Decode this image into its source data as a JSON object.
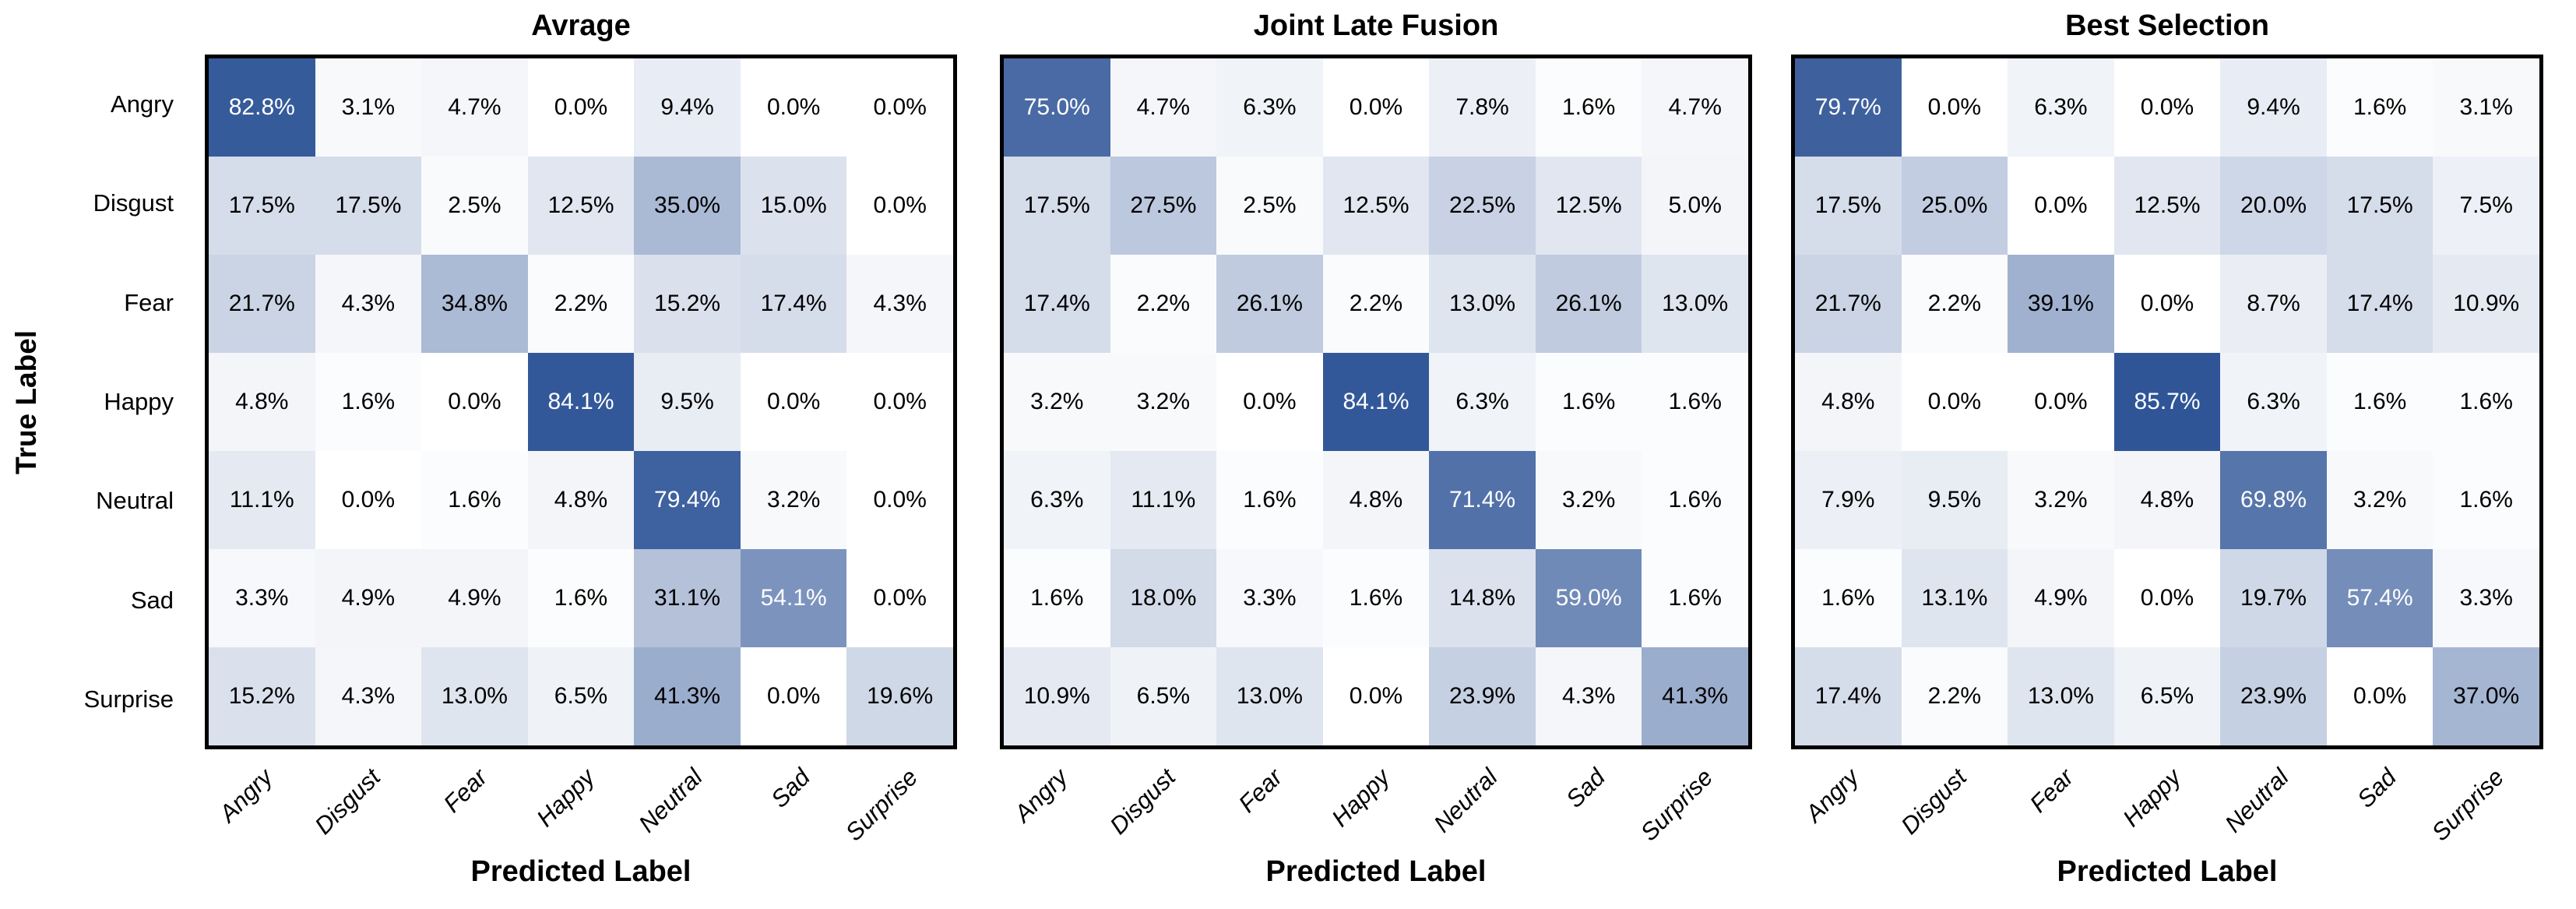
{
  "figure": {
    "y_axis_label": "True Label",
    "x_axis_label": "Predicted Label",
    "classes": [
      "Angry",
      "Disgust",
      "Fear",
      "Happy",
      "Neutral",
      "Sad",
      "Surprise"
    ],
    "colors": {
      "cmap_min": "#FFFFFF",
      "cmap_max": "#2F5597",
      "border": "#000000",
      "text_dark": "#000000",
      "text_light": "#FFFFFF"
    },
    "scale_max_percent": 85.7,
    "white_text_threshold_percent": 50
  },
  "chart_data": [
    {
      "type": "heatmap",
      "title": "Avrage",
      "xlabel": "Predicted Label",
      "ylabel": "True Label",
      "row_labels": [
        "Angry",
        "Disgust",
        "Fear",
        "Happy",
        "Neutral",
        "Sad",
        "Surprise"
      ],
      "col_labels": [
        "Angry",
        "Disgust",
        "Fear",
        "Happy",
        "Neutral",
        "Sad",
        "Surprise"
      ],
      "values_percent": [
        [
          82.8,
          3.1,
          4.7,
          0.0,
          9.4,
          0.0,
          0.0
        ],
        [
          17.5,
          17.5,
          2.5,
          12.5,
          35.0,
          15.0,
          0.0
        ],
        [
          21.7,
          4.3,
          34.8,
          2.2,
          15.2,
          17.4,
          4.3
        ],
        [
          4.8,
          1.6,
          0.0,
          84.1,
          9.5,
          0.0,
          0.0
        ],
        [
          11.1,
          0.0,
          1.6,
          4.8,
          79.4,
          3.2,
          0.0
        ],
        [
          3.3,
          4.9,
          4.9,
          1.6,
          31.1,
          54.1,
          0.0
        ],
        [
          15.2,
          4.3,
          13.0,
          6.5,
          41.3,
          0.0,
          19.6
        ]
      ]
    },
    {
      "type": "heatmap",
      "title": "Joint Late Fusion",
      "xlabel": "Predicted Label",
      "ylabel": "True Label",
      "row_labels": [
        "Angry",
        "Disgust",
        "Fear",
        "Happy",
        "Neutral",
        "Sad",
        "Surprise"
      ],
      "col_labels": [
        "Angry",
        "Disgust",
        "Fear",
        "Happy",
        "Neutral",
        "Sad",
        "Surprise"
      ],
      "values_percent": [
        [
          75.0,
          4.7,
          6.3,
          0.0,
          7.8,
          1.6,
          4.7
        ],
        [
          17.5,
          27.5,
          2.5,
          12.5,
          22.5,
          12.5,
          5.0
        ],
        [
          17.4,
          2.2,
          26.1,
          2.2,
          13.0,
          26.1,
          13.0
        ],
        [
          3.2,
          3.2,
          0.0,
          84.1,
          6.3,
          1.6,
          1.6
        ],
        [
          6.3,
          11.1,
          1.6,
          4.8,
          71.4,
          3.2,
          1.6
        ],
        [
          1.6,
          18.0,
          3.3,
          1.6,
          14.8,
          59.0,
          1.6
        ],
        [
          10.9,
          6.5,
          13.0,
          0.0,
          23.9,
          4.3,
          41.3
        ]
      ]
    },
    {
      "type": "heatmap",
      "title": "Best Selection",
      "xlabel": "Predicted Label",
      "ylabel": "True Label",
      "row_labels": [
        "Angry",
        "Disgust",
        "Fear",
        "Happy",
        "Neutral",
        "Sad",
        "Surprise"
      ],
      "col_labels": [
        "Angry",
        "Disgust",
        "Fear",
        "Happy",
        "Neutral",
        "Sad",
        "Surprise"
      ],
      "values_percent": [
        [
          79.7,
          0.0,
          6.3,
          0.0,
          9.4,
          1.6,
          3.1
        ],
        [
          17.5,
          25.0,
          0.0,
          12.5,
          20.0,
          17.5,
          7.5
        ],
        [
          21.7,
          2.2,
          39.1,
          0.0,
          8.7,
          17.4,
          10.9
        ],
        [
          4.8,
          0.0,
          0.0,
          85.7,
          6.3,
          1.6,
          1.6
        ],
        [
          7.9,
          9.5,
          3.2,
          4.8,
          69.8,
          3.2,
          1.6
        ],
        [
          1.6,
          13.1,
          4.9,
          0.0,
          19.7,
          57.4,
          3.3
        ],
        [
          17.4,
          2.2,
          13.0,
          6.5,
          23.9,
          0.0,
          37.0
        ]
      ]
    }
  ]
}
